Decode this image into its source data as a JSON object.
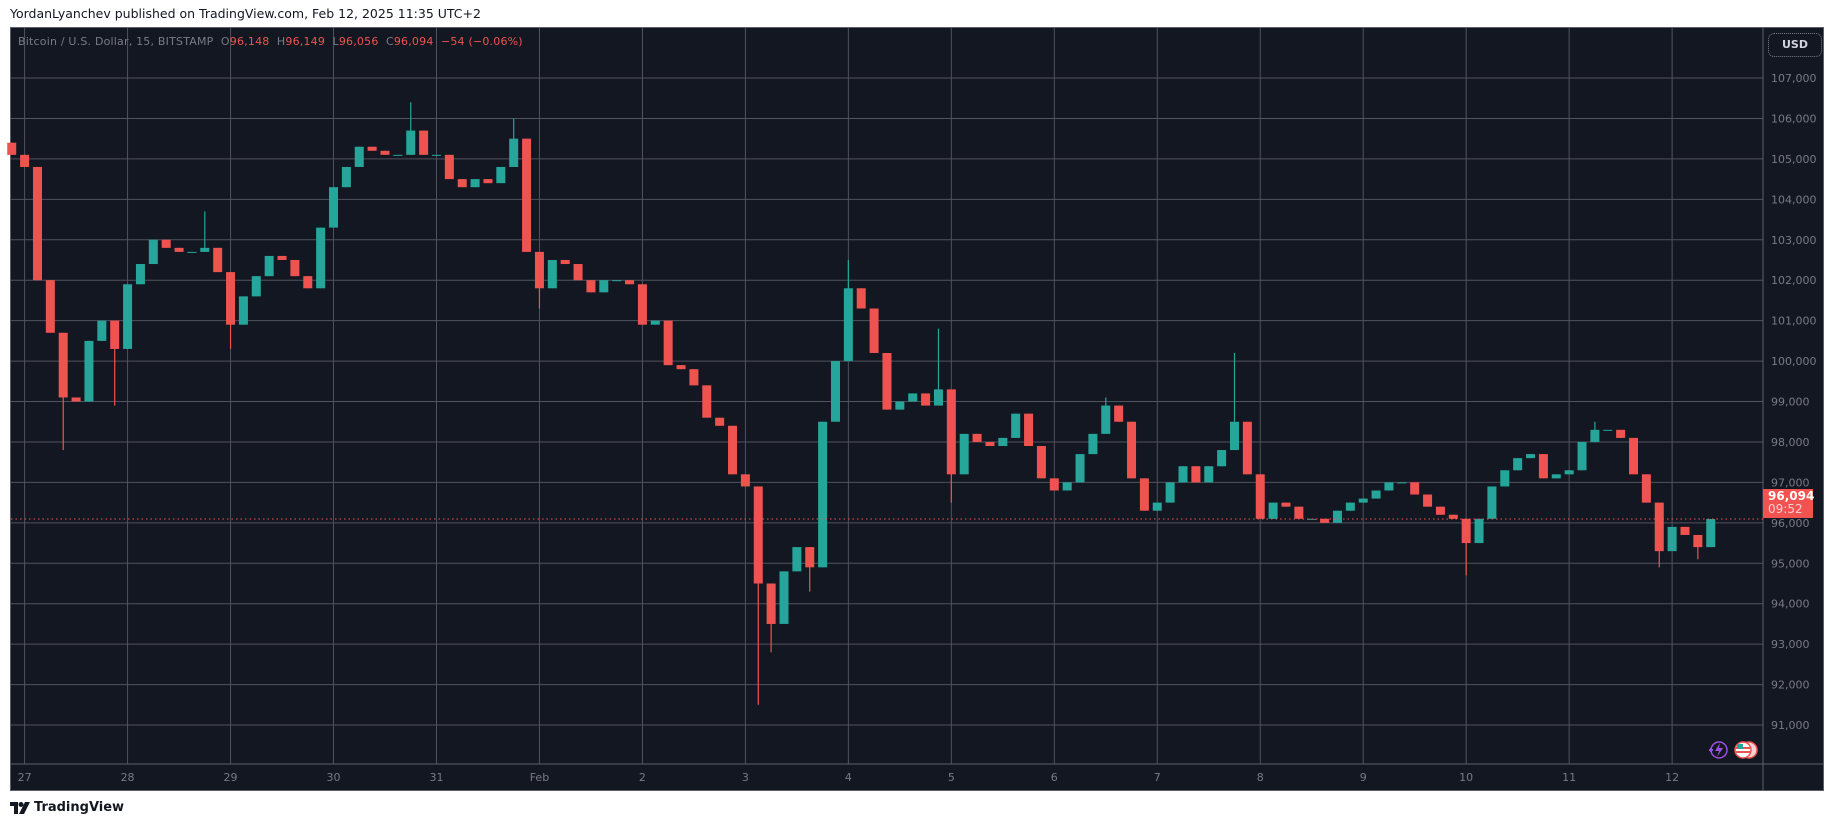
{
  "publisher_line": "YordanLyanchev published on TradingView.com, Feb 12, 2025 11:35 UTC+2",
  "legend": {
    "symbol": "Bitcoin / U.S. Dollar, 15, BITSTAMP",
    "o_label": "O",
    "o": "96,148",
    "h_label": "H",
    "h": "96,149",
    "l_label": "L",
    "l": "96,056",
    "c_label": "C",
    "c": "96,094",
    "change": "−54 (−0.06%)"
  },
  "currency_button": "USD",
  "last_price": {
    "value": "96,094",
    "countdown": "09:52"
  },
  "footer_brand": "TradingView",
  "colors": {
    "background": "#131722",
    "grid": "#50535e",
    "up": "#26a69a",
    "down": "#ef5350",
    "last_price": "#f05350"
  },
  "icons": [
    "lightning-icon",
    "us-flag-icon"
  ],
  "chart_data": {
    "type": "candlestick",
    "title": "",
    "symbol": "Bitcoin / U.S. Dollar",
    "timeframe": "15",
    "exchange": "BITSTAMP",
    "start": "2025-01-26 21:00",
    "step_hours": 3,
    "closes": [
      105100,
      104800,
      102000,
      100700,
      99100,
      99000,
      100500,
      101000,
      100300,
      101900,
      102400,
      103000,
      102800,
      102700,
      102700,
      102800,
      102200,
      100900,
      101600,
      102100,
      102600,
      102500,
      102100,
      101800,
      103300,
      104300,
      104800,
      105300,
      105200,
      105100,
      105100,
      105700,
      105100,
      105100,
      104500,
      104300,
      104500,
      104400,
      104800,
      105500,
      102700,
      101800,
      102500,
      102400,
      102000,
      101700,
      102000,
      102000,
      101900,
      100900,
      101000,
      99900,
      99800,
      99400,
      98600,
      98400,
      97200,
      96900,
      94500,
      93500,
      94800,
      95400,
      94900,
      98500,
      100000,
      101800,
      101300,
      100200,
      98800,
      99000,
      99200,
      98900,
      99300,
      97200,
      98200,
      98000,
      97900,
      98100,
      98700,
      97900,
      97100,
      96800,
      97000,
      97700,
      98200,
      98900,
      98500,
      97100,
      96300,
      96500,
      97000,
      97400,
      97000,
      97400,
      97800,
      98500,
      97200,
      96100,
      96500,
      96400,
      96100,
      96100,
      96000,
      96300,
      96500,
      96600,
      96800,
      97000,
      97000,
      96700,
      96400,
      96200,
      96100,
      95500,
      96100,
      96900,
      97300,
      97600,
      97700,
      97100,
      97200,
      97300,
      98000,
      98300,
      98300,
      98100,
      97200,
      96500,
      95300,
      95900,
      95700,
      95400,
      96094
    ],
    "wick_extremes": [
      {
        "i": 4,
        "low": 97800
      },
      {
        "i": 8,
        "low": 98900
      },
      {
        "i": 15,
        "high": 103700
      },
      {
        "i": 17,
        "low": 100300
      },
      {
        "i": 31,
        "high": 106400
      },
      {
        "i": 39,
        "high": 106000
      },
      {
        "i": 41,
        "low": 101300
      },
      {
        "i": 58,
        "low": 91500
      },
      {
        "i": 59,
        "low": 92800
      },
      {
        "i": 62,
        "low": 94300
      },
      {
        "i": 65,
        "high": 102500
      },
      {
        "i": 72,
        "high": 100800
      },
      {
        "i": 73,
        "low": 96500
      },
      {
        "i": 85,
        "high": 99100
      },
      {
        "i": 95,
        "high": 100200
      },
      {
        "i": 113,
        "low": 94700
      },
      {
        "i": 123,
        "high": 98500
      },
      {
        "i": 128,
        "low": 94900
      },
      {
        "i": 131,
        "low": 95100
      }
    ],
    "y_ticks": [
      "107,000",
      "106,000",
      "105,000",
      "104,000",
      "103,000",
      "102,000",
      "101,000",
      "100,000",
      "99,000",
      "98,000",
      "97,000",
      "96,000",
      "95,000",
      "94,000",
      "93,000",
      "92,000",
      "91,000"
    ],
    "y_tick_values": [
      107000,
      106000,
      105000,
      104000,
      103000,
      102000,
      101000,
      100000,
      99000,
      98000,
      97000,
      96000,
      95000,
      94000,
      93000,
      92000,
      91000
    ],
    "x_ticks": [
      "27",
      "28",
      "29",
      "30",
      "31",
      "Feb",
      "2",
      "3",
      "4",
      "5",
      "6",
      "7",
      "8",
      "9",
      "10",
      "11",
      "12"
    ],
    "last_close": 96094,
    "grid": true
  }
}
